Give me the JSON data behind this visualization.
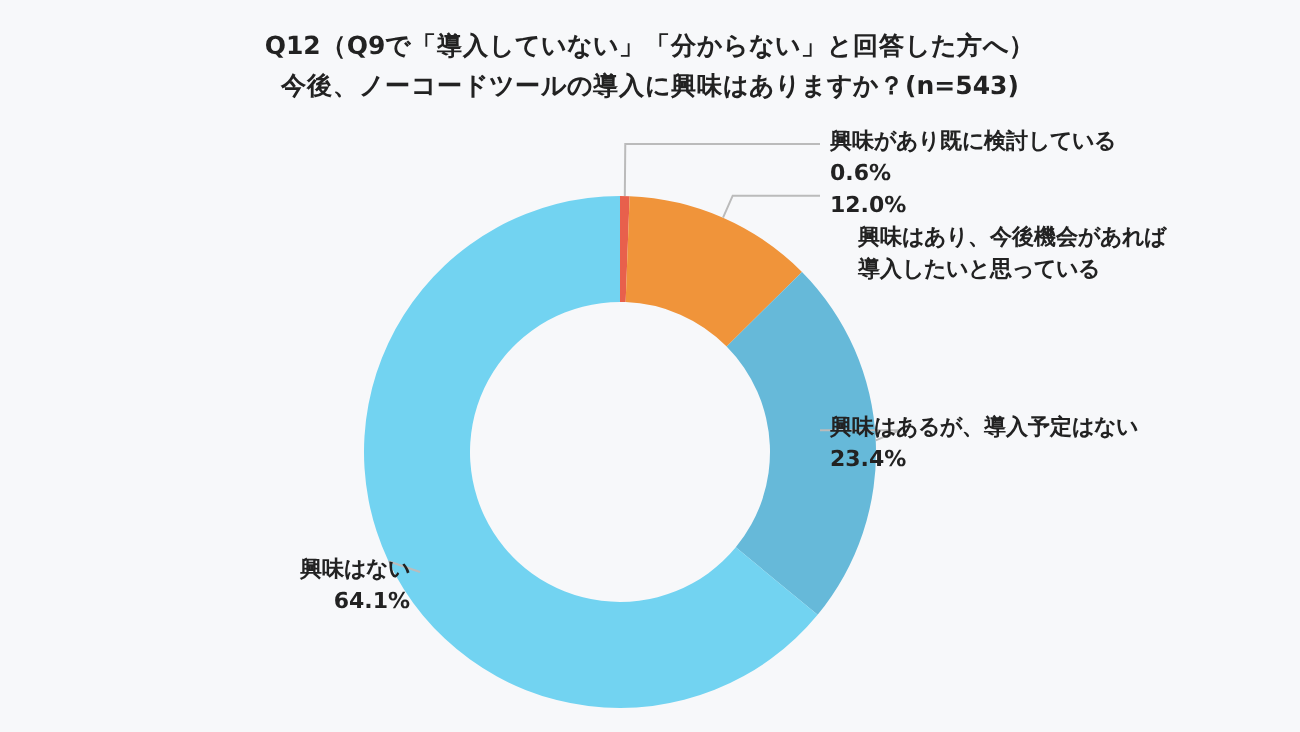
{
  "chart_data": {
    "type": "donut",
    "title": "Q12（Q9で「導入していない」「分からない」と回答した方へ）",
    "subtitle": "今後、ノーコードツールの導入に興味はありますか？(n=543)",
    "categories": [
      "興味があり既に検討している",
      "興味はあり、今後機会があれば導入したいと思っている",
      "興味はあるが、導入予定はない",
      "興味はない"
    ],
    "values": [
      0.6,
      12.0,
      23.4,
      64.1
    ],
    "colors": [
      "#e8604c",
      "#f0943a",
      "#66b9d9",
      "#72d3f1"
    ],
    "value_labels": [
      "0.6%",
      "12.0%",
      "23.4%",
      "64.1%"
    ],
    "legend": false
  }
}
